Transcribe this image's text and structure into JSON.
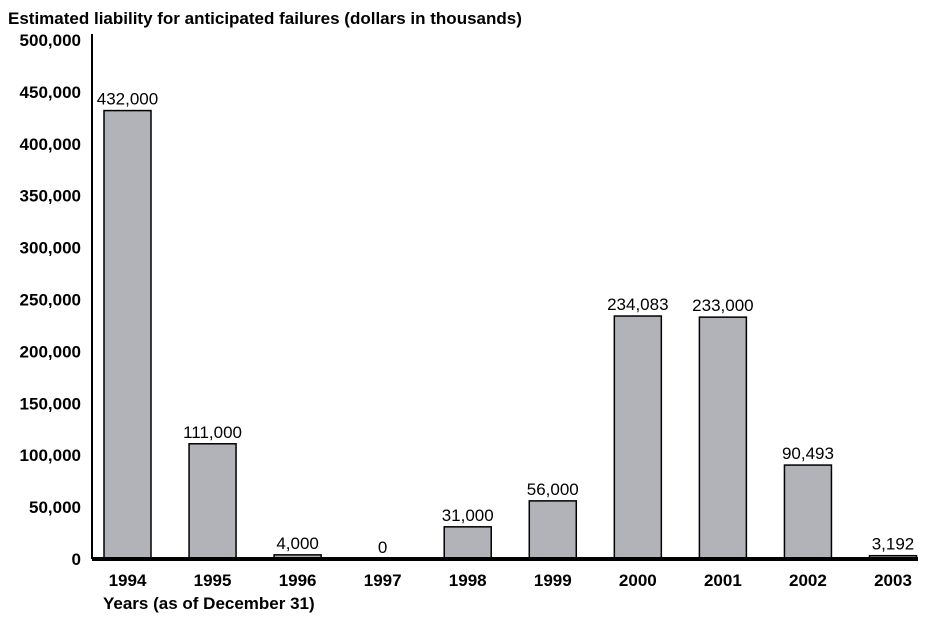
{
  "chart_data": {
    "type": "bar",
    "title": "Estimated liability for anticipated failures (dollars in thousands)",
    "xlabel": "Years (as of December 31)",
    "ylabel": "",
    "ylim": [
      0,
      500000
    ],
    "yticks": [
      "0",
      "50,000",
      "100,000",
      "150,000",
      "200,000",
      "250,000",
      "300,000",
      "350,000",
      "400,000",
      "450,000",
      "500,000"
    ],
    "categories": [
      "1994",
      "1995",
      "1996",
      "1997",
      "1998",
      "1999",
      "2000",
      "2001",
      "2002",
      "2003"
    ],
    "values": [
      432000,
      111000,
      4000,
      0,
      31000,
      56000,
      234083,
      233000,
      90493,
      3192
    ],
    "data_labels": [
      "432,000",
      "111,000",
      "4,000",
      "0",
      "31,000",
      "56,000",
      "234,083",
      "233,000",
      "90,493",
      "3,192"
    ],
    "bar_color": "#b2b3b8",
    "grid": false
  }
}
